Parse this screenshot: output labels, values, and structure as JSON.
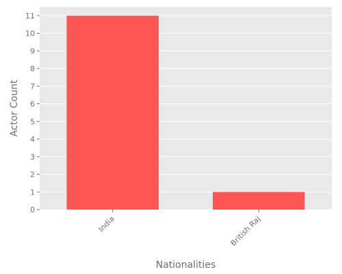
{
  "chart_data": {
    "type": "bar",
    "categories": [
      "India",
      "British Raj"
    ],
    "values": [
      11,
      1
    ],
    "xlabel": "Nationalities",
    "ylabel": "Actor Count",
    "ylim": [
      0,
      11.5
    ],
    "yticks": [
      0,
      1,
      2,
      3,
      4,
      5,
      6,
      7,
      8,
      9,
      10,
      11
    ],
    "grid": true,
    "legend": "none",
    "colors": {
      "bar": "#ff5555",
      "panel": "#e9e9e9",
      "grid": "#ffffff",
      "text": "#6f6f6f"
    }
  }
}
